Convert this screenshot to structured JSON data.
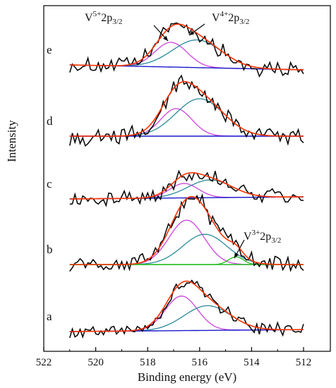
{
  "chart_data": {
    "type": "line",
    "title": "",
    "xlabel": "Binding energy (eV)",
    "ylabel": "Intensity",
    "xlim": [
      522,
      512
    ],
    "x_reversed": true,
    "x_ticks": [
      "522",
      "520",
      "518",
      "516",
      "514",
      "512"
    ],
    "grid": false,
    "legend": "none",
    "colors": {
      "raw": "#000000",
      "envelope": "#ff3300",
      "v5_peak": "#cc44dd",
      "v4_peak": "#2a8a9a",
      "v3_peak": "#22bb22",
      "background": "#1a1acc"
    },
    "spectra": [
      {
        "label": "e",
        "v5": {
          "center": 517.1,
          "height": 0.5,
          "width": 0.62
        },
        "v4": {
          "center": 516.1,
          "height": 0.56,
          "width": 0.95
        },
        "v3": null,
        "bg_start": 0.0,
        "bg_end": -0.1,
        "noise": 0.14
      },
      {
        "label": "d",
        "v5": {
          "center": 516.9,
          "height": 0.5,
          "width": 0.6
        },
        "v4": {
          "center": 516.0,
          "height": 0.68,
          "width": 0.92
        },
        "v3": null,
        "bg_start": 0.0,
        "bg_end": 0.0,
        "noise": 0.14
      },
      {
        "label": "c",
        "v5": {
          "center": 516.6,
          "height": 0.34,
          "width": 0.55
        },
        "v4": {
          "center": 515.6,
          "height": 0.42,
          "width": 0.85
        },
        "v3": null,
        "bg_start": 0.0,
        "bg_end": 0.05,
        "noise": 0.16
      },
      {
        "label": "b",
        "v5": {
          "center": 516.5,
          "height": 0.85,
          "width": 0.68
        },
        "v4": {
          "center": 515.8,
          "height": 0.58,
          "width": 0.85
        },
        "v3": {
          "center": 514.6,
          "height": 0.15,
          "width": 0.28
        },
        "bg_start": 0.0,
        "bg_end": 0.0,
        "noise": 0.14
      },
      {
        "label": "a",
        "v5": {
          "center": 516.7,
          "height": 0.7,
          "width": 0.62
        },
        "v4": {
          "center": 515.7,
          "height": 0.5,
          "width": 0.9
        },
        "v3": null,
        "bg_start": 0.0,
        "bg_end": 0.04,
        "noise": 0.12
      }
    ],
    "annotations": [
      {
        "base": "V",
        "sup": "5+",
        "main": "2p",
        "sub": "3/2",
        "peak": "V5+",
        "spectrum": "e"
      },
      {
        "base": "V",
        "sup": "4+",
        "main": "2p",
        "sub": "3/2",
        "peak": "V4+",
        "spectrum": "e"
      },
      {
        "base": "V",
        "sup": "3+",
        "main": "2p",
        "sub": "3/2",
        "peak": "V3+",
        "spectrum": "b"
      }
    ]
  }
}
